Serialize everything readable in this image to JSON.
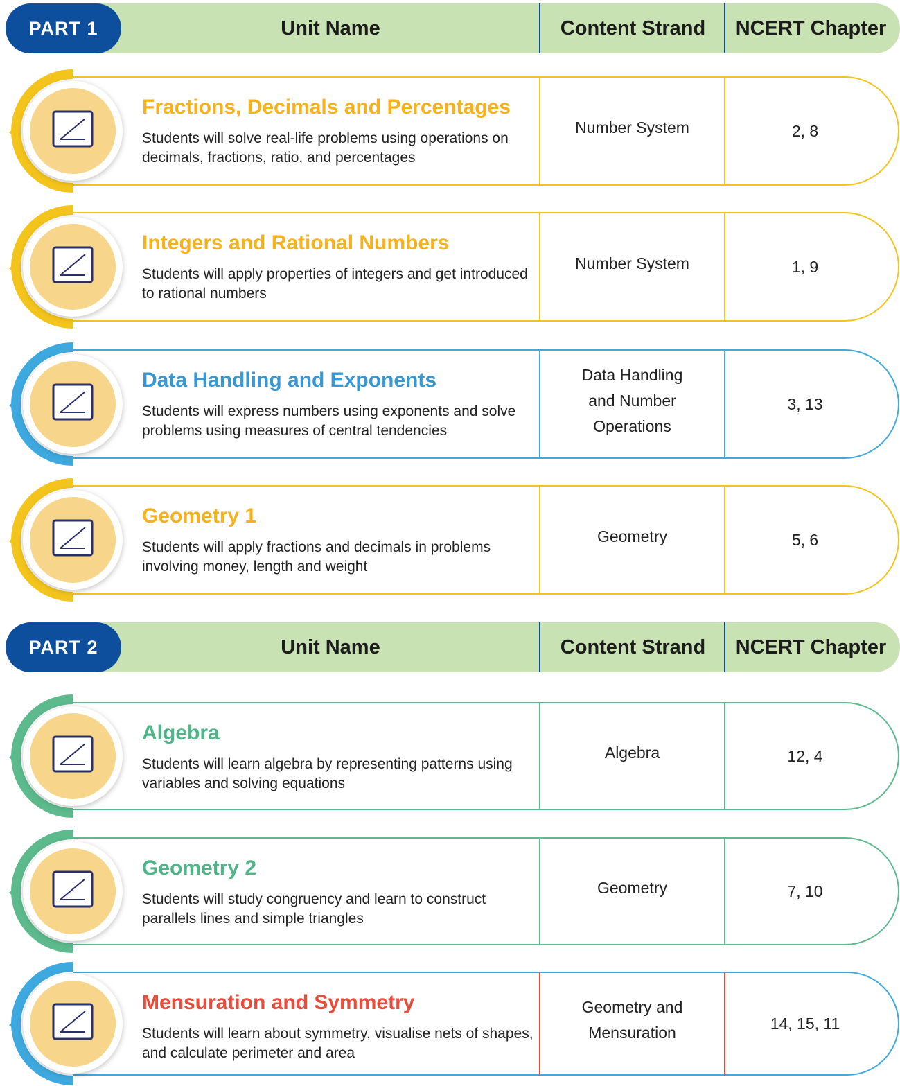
{
  "parts": [
    {
      "label": "PART 1",
      "headers": [
        "Unit Name",
        "Content Strand",
        "NCERT Chapter"
      ],
      "units": [
        {
          "title": "Fractions, Decimals and Percentages",
          "description": "Students will solve real-life problems using operations on decimals, fractions, ratio, and percentages",
          "strand": "Number System",
          "chapters": "2, 8"
        },
        {
          "title": "Integers and Rational Numbers",
          "description": "Students will apply properties of integers and get introduced to rational numbers",
          "strand": "Number System",
          "chapters": "1, 9"
        },
        {
          "title": "Data Handling and Exponents",
          "description": "Students will express numbers using exponents and solve problems using measures of central tendencies",
          "strand": "Data Handling and Number Operations",
          "chapters": "3, 13"
        },
        {
          "title": "Geometry 1",
          "description": "Students will apply fractions and decimals in problems involving money, length and weight",
          "strand": "Geometry",
          "chapters": "5, 6"
        }
      ]
    },
    {
      "label": "PART 2",
      "headers": [
        "Unit Name",
        "Content Strand",
        "NCERT Chapter"
      ],
      "units": [
        {
          "title": "Algebra",
          "description": "Students will learn algebra by representing patterns using variables and solving equations",
          "strand": "Algebra",
          "chapters": "12, 4"
        },
        {
          "title": "Geometry 2",
          "description": "Students will study congruency and learn to construct parallels lines and simple triangles",
          "strand": "Geometry",
          "chapters": "7, 10"
        },
        {
          "title": "Mensuration and Symmetry",
          "description": "Students will learn about symmetry, visualise nets of shapes, and calculate perimeter and area",
          "strand": "Geometry and Mensuration",
          "chapters": "14, 15, 11"
        }
      ]
    }
  ]
}
